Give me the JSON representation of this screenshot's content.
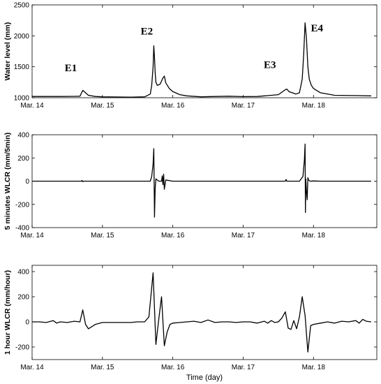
{
  "chart_data": [
    {
      "type": "line",
      "ylabel": "Water level (mm)",
      "xlabel": "",
      "xlim": [
        0,
        4.9
      ],
      "ylim": [
        1000,
        2500
      ],
      "x_ticks": [
        0,
        1,
        2,
        3,
        4
      ],
      "x_tick_labels": [
        "Mar. 14",
        "Mar. 15",
        "Mar. 16",
        "Mar. 17",
        "Mar. 18"
      ],
      "y_ticks": [
        1000,
        1500,
        2000,
        2500
      ],
      "y_tick_labels": [
        "1000",
        "1500",
        "2000",
        "2500"
      ],
      "annotations": [
        {
          "text": "E1",
          "x": 0.55,
          "y": 1430
        },
        {
          "text": "E2",
          "x": 1.63,
          "y": 2020
        },
        {
          "text": "E3",
          "x": 3.38,
          "y": 1480
        },
        {
          "text": "E4",
          "x": 4.05,
          "y": 2070
        }
      ],
      "series": [
        {
          "x": [
            0.0,
            0.4,
            0.6,
            0.68,
            0.72,
            0.76,
            0.8,
            0.9,
            1.0,
            1.2,
            1.4,
            1.6,
            1.68,
            1.7,
            1.72,
            1.73,
            1.74,
            1.75,
            1.76,
            1.78,
            1.82,
            1.86,
            1.88,
            1.9,
            1.95,
            2.0,
            2.1,
            2.2,
            2.4,
            2.6,
            2.8,
            3.0,
            3.2,
            3.5,
            3.6,
            3.62,
            3.65,
            3.7,
            3.75,
            3.8,
            3.84,
            3.86,
            3.88,
            3.9,
            3.92,
            3.94,
            3.97,
            4.0,
            4.1,
            4.3,
            4.6,
            4.82
          ],
          "y": [
            1020,
            1020,
            1022,
            1025,
            1120,
            1080,
            1040,
            1020,
            1015,
            1012,
            1010,
            1015,
            1060,
            1200,
            1500,
            1840,
            1650,
            1400,
            1250,
            1200,
            1220,
            1320,
            1350,
            1240,
            1150,
            1100,
            1050,
            1030,
            1015,
            1020,
            1025,
            1018,
            1020,
            1050,
            1130,
            1140,
            1100,
            1080,
            1060,
            1080,
            1300,
            1700,
            2210,
            1950,
            1500,
            1300,
            1200,
            1150,
            1080,
            1040,
            1035,
            1030
          ]
        }
      ]
    },
    {
      "type": "line",
      "ylabel": "5 minutes WLCR (mm/5min)",
      "xlabel": "",
      "xlim": [
        0,
        4.9
      ],
      "ylim": [
        -400,
        400
      ],
      "x_ticks": [
        0,
        1,
        2,
        3,
        4
      ],
      "x_tick_labels": [
        "Mar. 14",
        "Mar. 15",
        "Mar. 16",
        "Mar. 17",
        "Mar. 18"
      ],
      "y_ticks": [
        -400,
        -200,
        0,
        200,
        400
      ],
      "y_tick_labels": [
        "-400",
        "-200",
        "0",
        "200",
        "400"
      ],
      "series": [
        {
          "x": [
            0.0,
            0.7,
            0.71,
            0.72,
            0.73,
            1.68,
            1.7,
            1.72,
            1.73,
            1.74,
            1.75,
            1.76,
            1.8,
            1.84,
            1.85,
            1.86,
            1.87,
            1.88,
            1.9,
            2.0,
            3.6,
            3.61,
            3.62,
            3.8,
            3.85,
            3.87,
            3.88,
            3.885,
            3.89,
            3.9,
            3.91,
            3.92,
            3.93,
            3.95,
            4.0,
            4.1,
            4.82
          ],
          "y": [
            0,
            0,
            6,
            -4,
            0,
            0,
            40,
            150,
            280,
            -310,
            -60,
            20,
            0,
            0,
            45,
            -30,
            60,
            -70,
            10,
            0,
            0,
            15,
            0,
            0,
            40,
            180,
            320,
            -270,
            20,
            -90,
            -160,
            30,
            10,
            0,
            2,
            0,
            0
          ]
        }
      ]
    },
    {
      "type": "line",
      "ylabel": "1 hour WLCR (mm/hour)",
      "xlabel": "Time (day)",
      "xlim": [
        0,
        4.9
      ],
      "ylim": [
        -300,
        450
      ],
      "x_ticks": [
        0,
        1,
        2,
        3,
        4
      ],
      "x_tick_labels": [
        "Mar. 14",
        "Mar. 15",
        "Mar. 16",
        "Mar. 17",
        "Mar. 18"
      ],
      "y_ticks": [
        -200,
        0,
        200,
        400
      ],
      "y_tick_labels": [
        "-200",
        "0",
        "200",
        "400"
      ],
      "series": [
        {
          "x": [
            0.0,
            0.1,
            0.2,
            0.3,
            0.35,
            0.4,
            0.5,
            0.6,
            0.68,
            0.72,
            0.76,
            0.8,
            0.9,
            1.0,
            1.1,
            1.2,
            1.3,
            1.4,
            1.5,
            1.6,
            1.66,
            1.72,
            1.76,
            1.8,
            1.84,
            1.88,
            1.92,
            1.96,
            2.0,
            2.1,
            2.2,
            2.3,
            2.4,
            2.5,
            2.6,
            2.7,
            2.8,
            2.9,
            3.0,
            3.1,
            3.2,
            3.3,
            3.35,
            3.4,
            3.45,
            3.5,
            3.55,
            3.6,
            3.64,
            3.68,
            3.72,
            3.76,
            3.8,
            3.84,
            3.88,
            3.92,
            3.96,
            4.0,
            4.1,
            4.2,
            4.3,
            4.4,
            4.5,
            4.6,
            4.65,
            4.7,
            4.75,
            4.82
          ],
          "y": [
            0,
            0,
            -5,
            10,
            -10,
            0,
            -5,
            5,
            0,
            95,
            -20,
            -55,
            -20,
            -5,
            -5,
            -5,
            -5,
            -5,
            0,
            0,
            40,
            390,
            -180,
            20,
            200,
            -190,
            -80,
            -20,
            -10,
            -5,
            0,
            5,
            -5,
            15,
            -5,
            0,
            0,
            -5,
            0,
            0,
            -10,
            5,
            -10,
            10,
            -5,
            0,
            30,
            80,
            -50,
            -60,
            10,
            -55,
            40,
            200,
            50,
            -240,
            -30,
            -20,
            -10,
            0,
            -10,
            5,
            0,
            10,
            -10,
            20,
            5,
            0
          ]
        }
      ]
    }
  ]
}
